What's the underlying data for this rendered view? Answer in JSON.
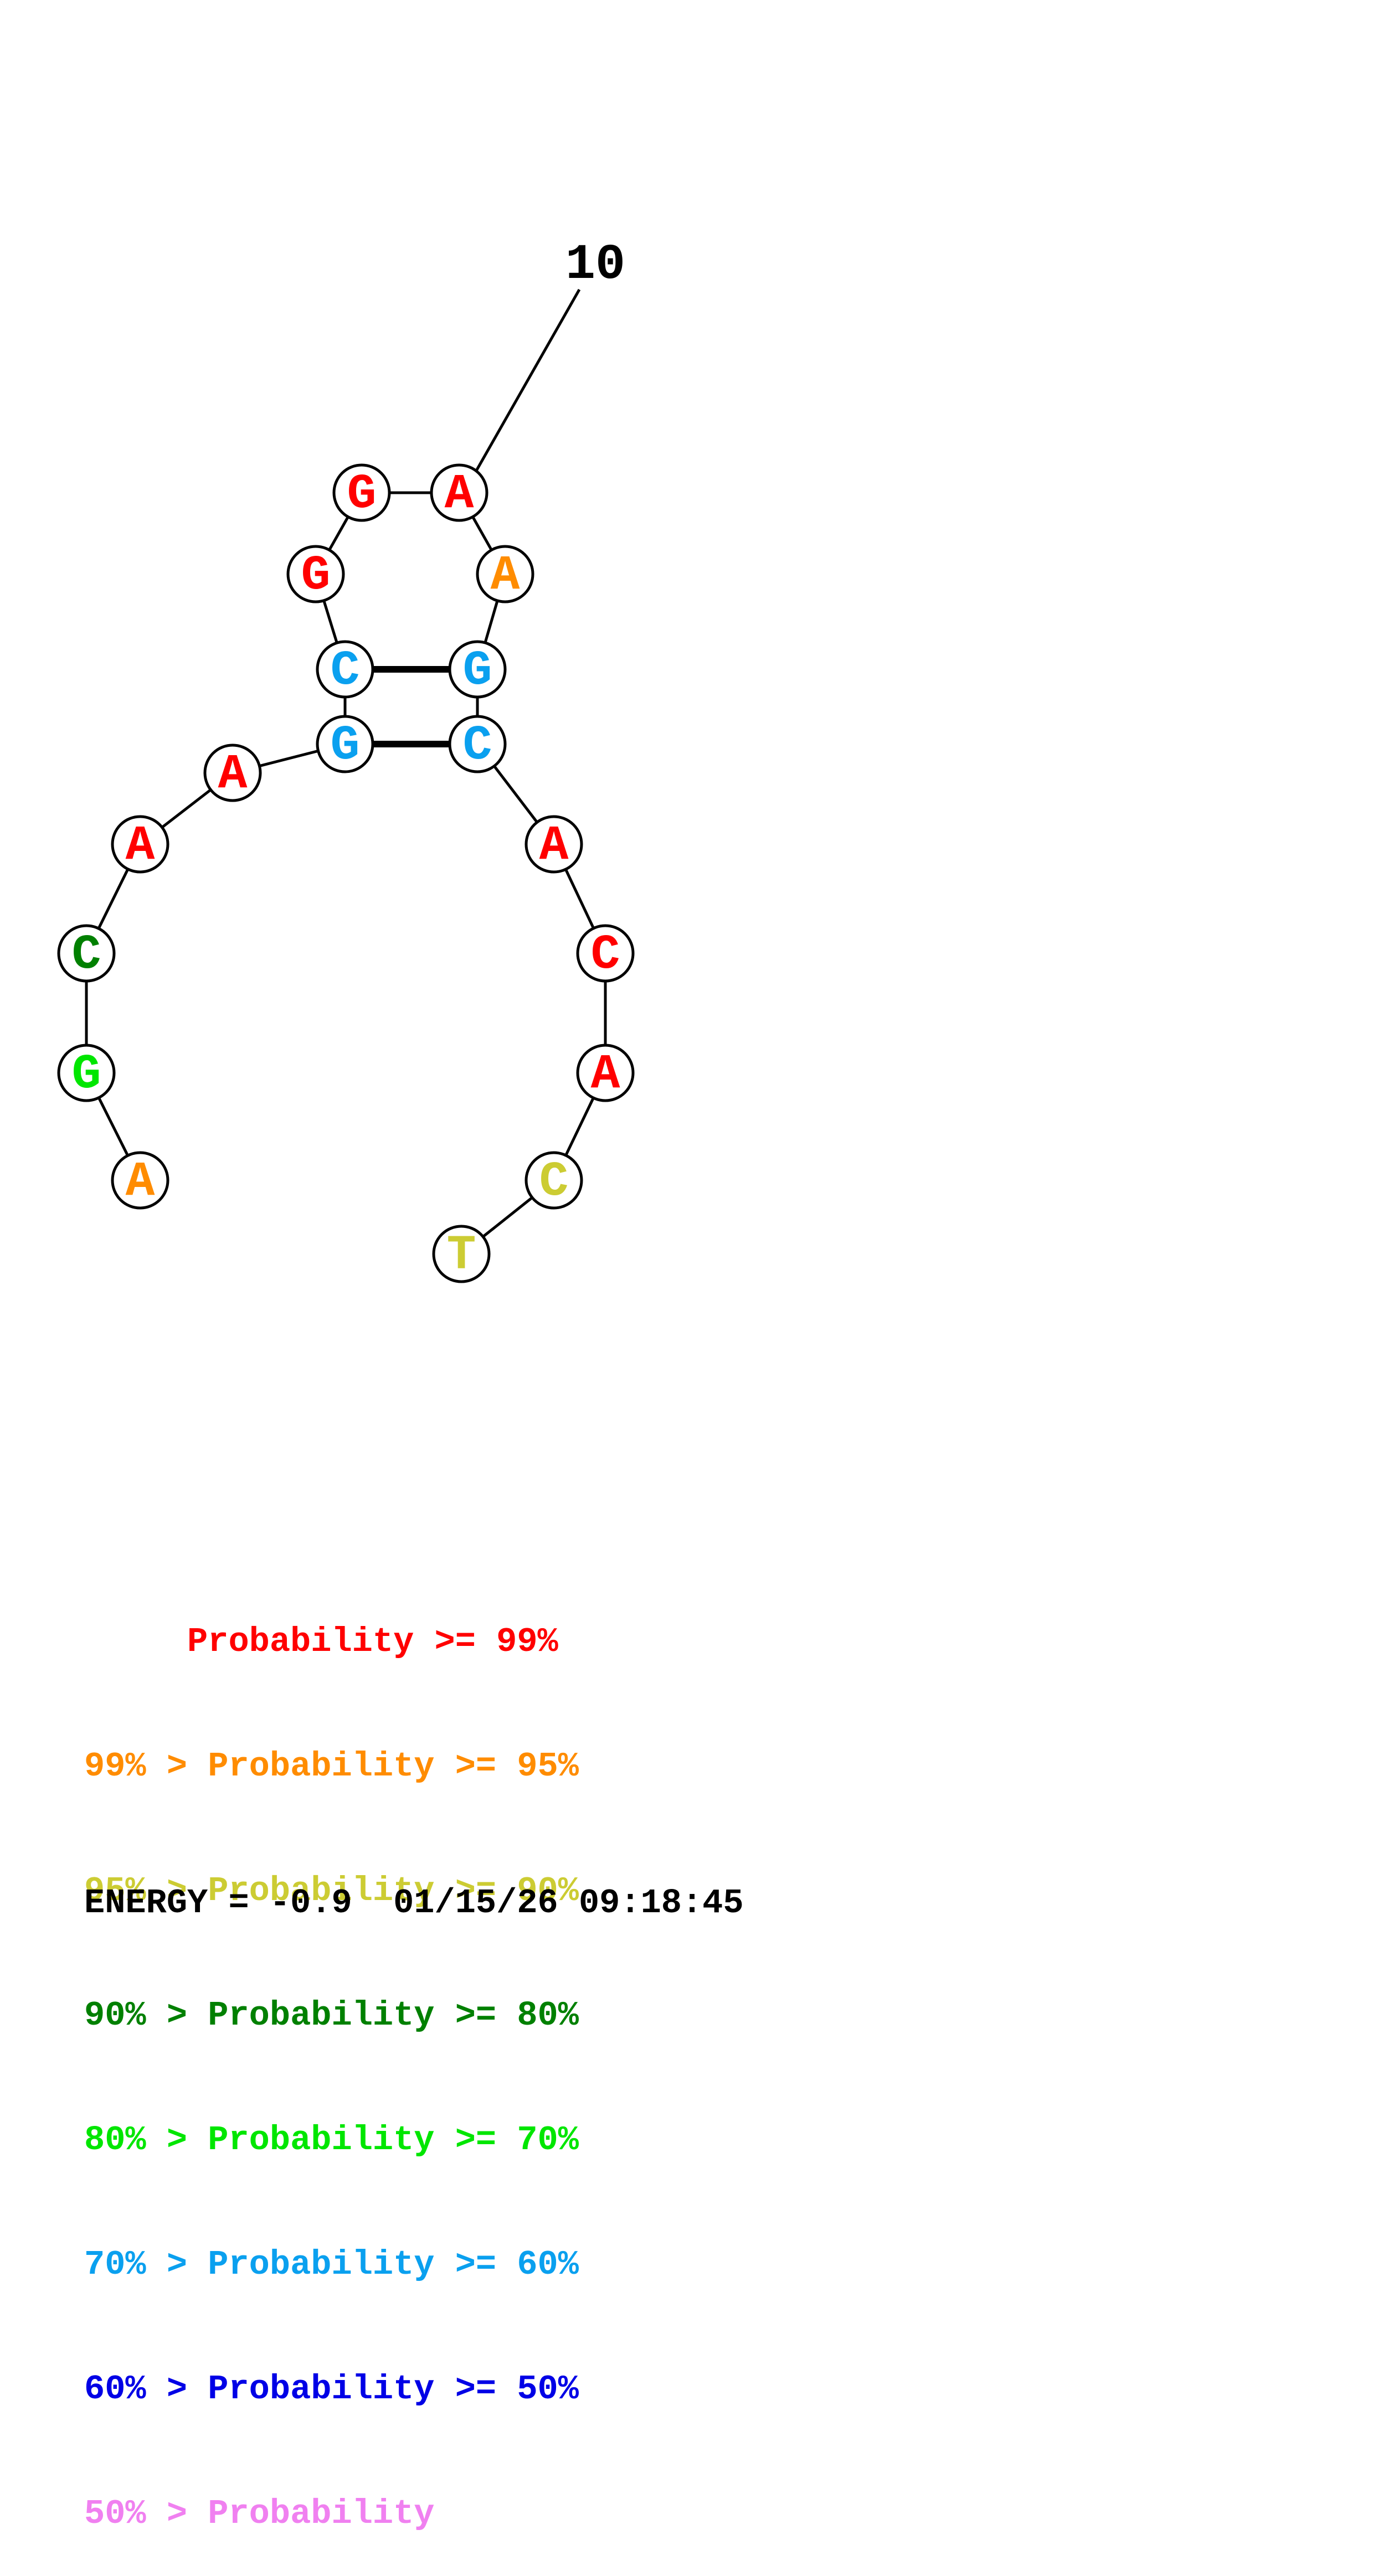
{
  "structure": {
    "position_label": "10",
    "nucleotides": [
      {
        "base": "A",
        "color": "#ff8c00"
      },
      {
        "base": "G",
        "color": "#00e600"
      },
      {
        "base": "C",
        "color": "#008000"
      },
      {
        "base": "A",
        "color": "#ff0000"
      },
      {
        "base": "A",
        "color": "#ff0000"
      },
      {
        "base": "G",
        "color": "#0aa0ef"
      },
      {
        "base": "C",
        "color": "#0aa0ef"
      },
      {
        "base": "G",
        "color": "#ff0000"
      },
      {
        "base": "G",
        "color": "#ff0000"
      },
      {
        "base": "A",
        "color": "#ff0000"
      },
      {
        "base": "A",
        "color": "#ff8c00"
      },
      {
        "base": "G",
        "color": "#0aa0ef"
      },
      {
        "base": "C",
        "color": "#0aa0ef"
      },
      {
        "base": "A",
        "color": "#ff0000"
      },
      {
        "base": "C",
        "color": "#ff0000"
      },
      {
        "base": "A",
        "color": "#ff0000"
      },
      {
        "base": "C",
        "color": "#cccc33"
      },
      {
        "base": "T",
        "color": "#cccc33"
      }
    ],
    "base_pairs": [
      [
        6,
        11
      ],
      [
        5,
        12
      ]
    ]
  },
  "legend": [
    {
      "prefix": "     ",
      "label": "Probability >= 99%",
      "color": "#ff0000"
    },
    {
      "prefix": "99% > ",
      "label": "Probability >= 95%",
      "color": "#ff8c00"
    },
    {
      "prefix": "95% > ",
      "label": "Probability >= 90%",
      "color": "#cccc33"
    },
    {
      "prefix": "90% > ",
      "label": "Probability >= 80%",
      "color": "#008000"
    },
    {
      "prefix": "80% > ",
      "label": "Probability >= 70%",
      "color": "#00e600"
    },
    {
      "prefix": "70% > ",
      "label": "Probability >= 60%",
      "color": "#0aa0ef"
    },
    {
      "prefix": "60% > ",
      "label": "Probability >= 50%",
      "color": "#0000e6"
    },
    {
      "prefix": "50% > ",
      "label": "Probability",
      "color": "#f080f0"
    }
  ],
  "energy": "ENERGY = -0.9  01/15/26 09:18:45"
}
